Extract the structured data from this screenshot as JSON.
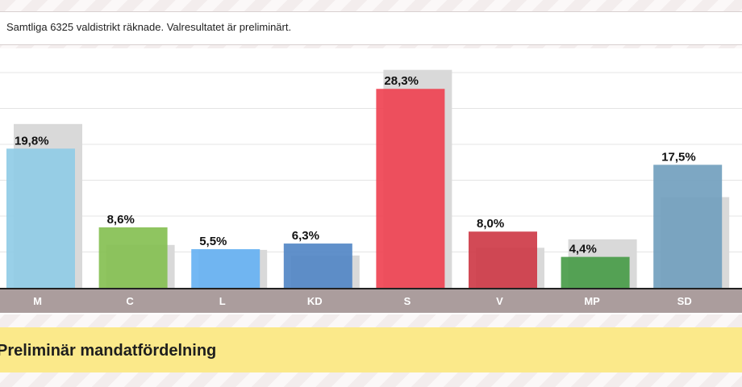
{
  "header": {
    "note": "Samtliga 6325 valdistrikt räknade. Valresultatet är preliminärt."
  },
  "mandate_section": {
    "title": "Preliminär mandatfördelning"
  },
  "chart_data": {
    "type": "bar",
    "categories": [
      "M",
      "C",
      "L",
      "KD",
      "S",
      "V",
      "MP",
      "SD"
    ],
    "series": [
      {
        "values": [
          19.8,
          8.6,
          5.5,
          6.3,
          28.3,
          8.0,
          4.4,
          17.5
        ]
      },
      {
        "values": [
          23.3,
          6.1,
          5.4,
          4.6,
          31.0,
          5.7,
          6.9,
          12.9
        ]
      }
    ],
    "value_labels": [
      "19,8%",
      "8,6%",
      "5,5%",
      "6,3%",
      "28,3%",
      "8,0%",
      "4,4%",
      "17,5%"
    ],
    "colors": [
      "#8ecbe6",
      "#83bf4f",
      "#64b0f3",
      "#4f84c4",
      "#ee3f4f",
      "#cd3644",
      "#459a45",
      "#6f9dbd"
    ],
    "previous_color": "#d9d9d9",
    "axis_band_color": "#ab9d9d",
    "gridlines": true,
    "ylim": [
      0,
      34
    ]
  }
}
